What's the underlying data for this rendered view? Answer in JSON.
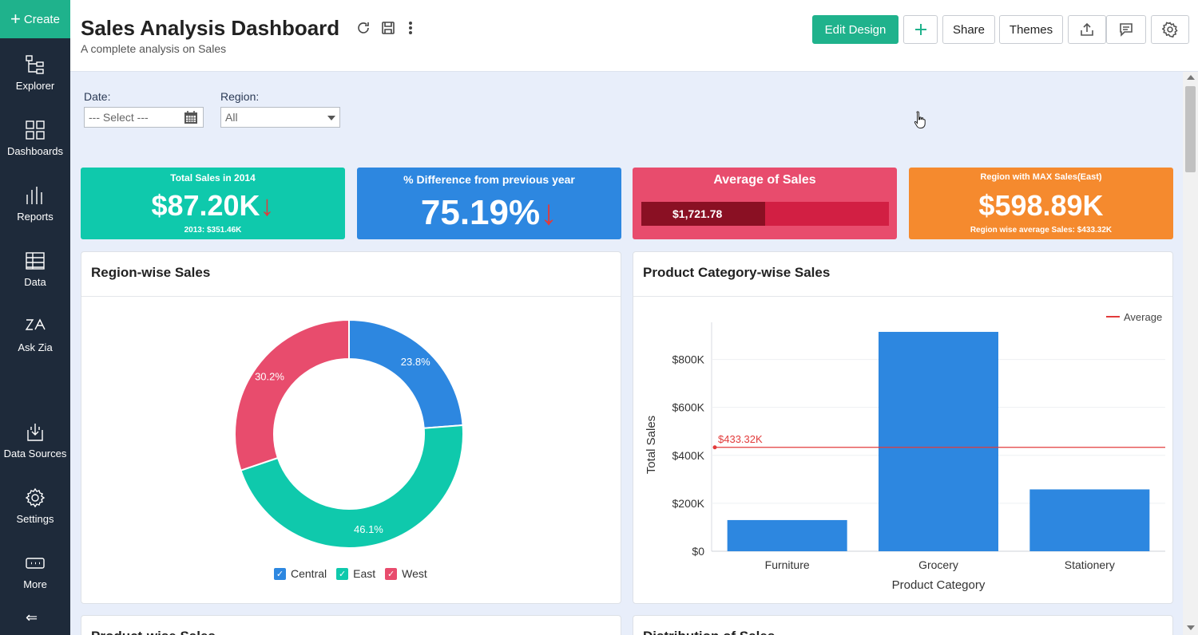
{
  "sidebar": {
    "create_label": "Create",
    "items": [
      {
        "label": "Explorer",
        "icon": "explorer-icon"
      },
      {
        "label": "Dashboards",
        "icon": "dashboards-icon"
      },
      {
        "label": "Reports",
        "icon": "reports-icon"
      },
      {
        "label": "Data",
        "icon": "data-icon"
      },
      {
        "label": "Ask Zia",
        "icon": "zia-icon"
      },
      {
        "label": "Data Sources",
        "icon": "data-sources-icon"
      },
      {
        "label": "Settings",
        "icon": "settings-icon"
      },
      {
        "label": "More",
        "icon": "more-icon"
      }
    ]
  },
  "header": {
    "title": "Sales Analysis Dashboard",
    "subtitle": "A complete analysis on Sales",
    "edit_design": "Edit Design",
    "share": "Share",
    "themes": "Themes"
  },
  "filters": {
    "date_label": "Date:",
    "date_placeholder": "--- Select ---",
    "region_label": "Region:",
    "region_value": "All"
  },
  "kpis": [
    {
      "title": "Total Sales in 2014",
      "value": "$87.20K",
      "sub": "2013: $351.46K",
      "color": "#0fc9ac"
    },
    {
      "title": "% Difference from previous year",
      "value": "75.19%",
      "color": "#2d87e0"
    },
    {
      "title": "Average of Sales",
      "value": "$1,721.78",
      "color": "#e84c6d",
      "bar_fraction": 0.5
    },
    {
      "title": "Region with MAX Sales(East)",
      "value": "$598.89K",
      "sub": "Region wise average Sales: $433.32K",
      "color": "#f58a2e"
    }
  ],
  "panels": {
    "region": {
      "title": "Region-wise Sales"
    },
    "category": {
      "title": "Product Category-wise Sales",
      "legend": "Average",
      "average_label": "$433.32K"
    },
    "product": {
      "title": "Product-wise Sales"
    },
    "distribution": {
      "title": "Distribution of Sales"
    }
  },
  "chart_data": [
    {
      "type": "pie",
      "title": "Region-wise Sales",
      "categories": [
        "Central",
        "East",
        "West"
      ],
      "values": [
        23.8,
        46.1,
        30.2
      ],
      "labels": [
        "23.8%",
        "46.1%",
        "30.2%"
      ],
      "colors": [
        "#2d87e0",
        "#0fc9ac",
        "#e84c6d"
      ]
    },
    {
      "type": "bar",
      "title": "Product Category-wise Sales",
      "categories": [
        "Furniture",
        "Grocery",
        "Stationery"
      ],
      "values": [
        130000,
        915000,
        258000
      ],
      "average": 433320,
      "xlabel": "Product Category",
      "ylabel": "Total Sales",
      "ylim": [
        0,
        955000
      ],
      "yticks": [
        "$0",
        "$200K",
        "$400K",
        "$600K",
        "$800K"
      ],
      "bar_color": "#2d87e0",
      "average_color": "#e23b3b"
    }
  ]
}
